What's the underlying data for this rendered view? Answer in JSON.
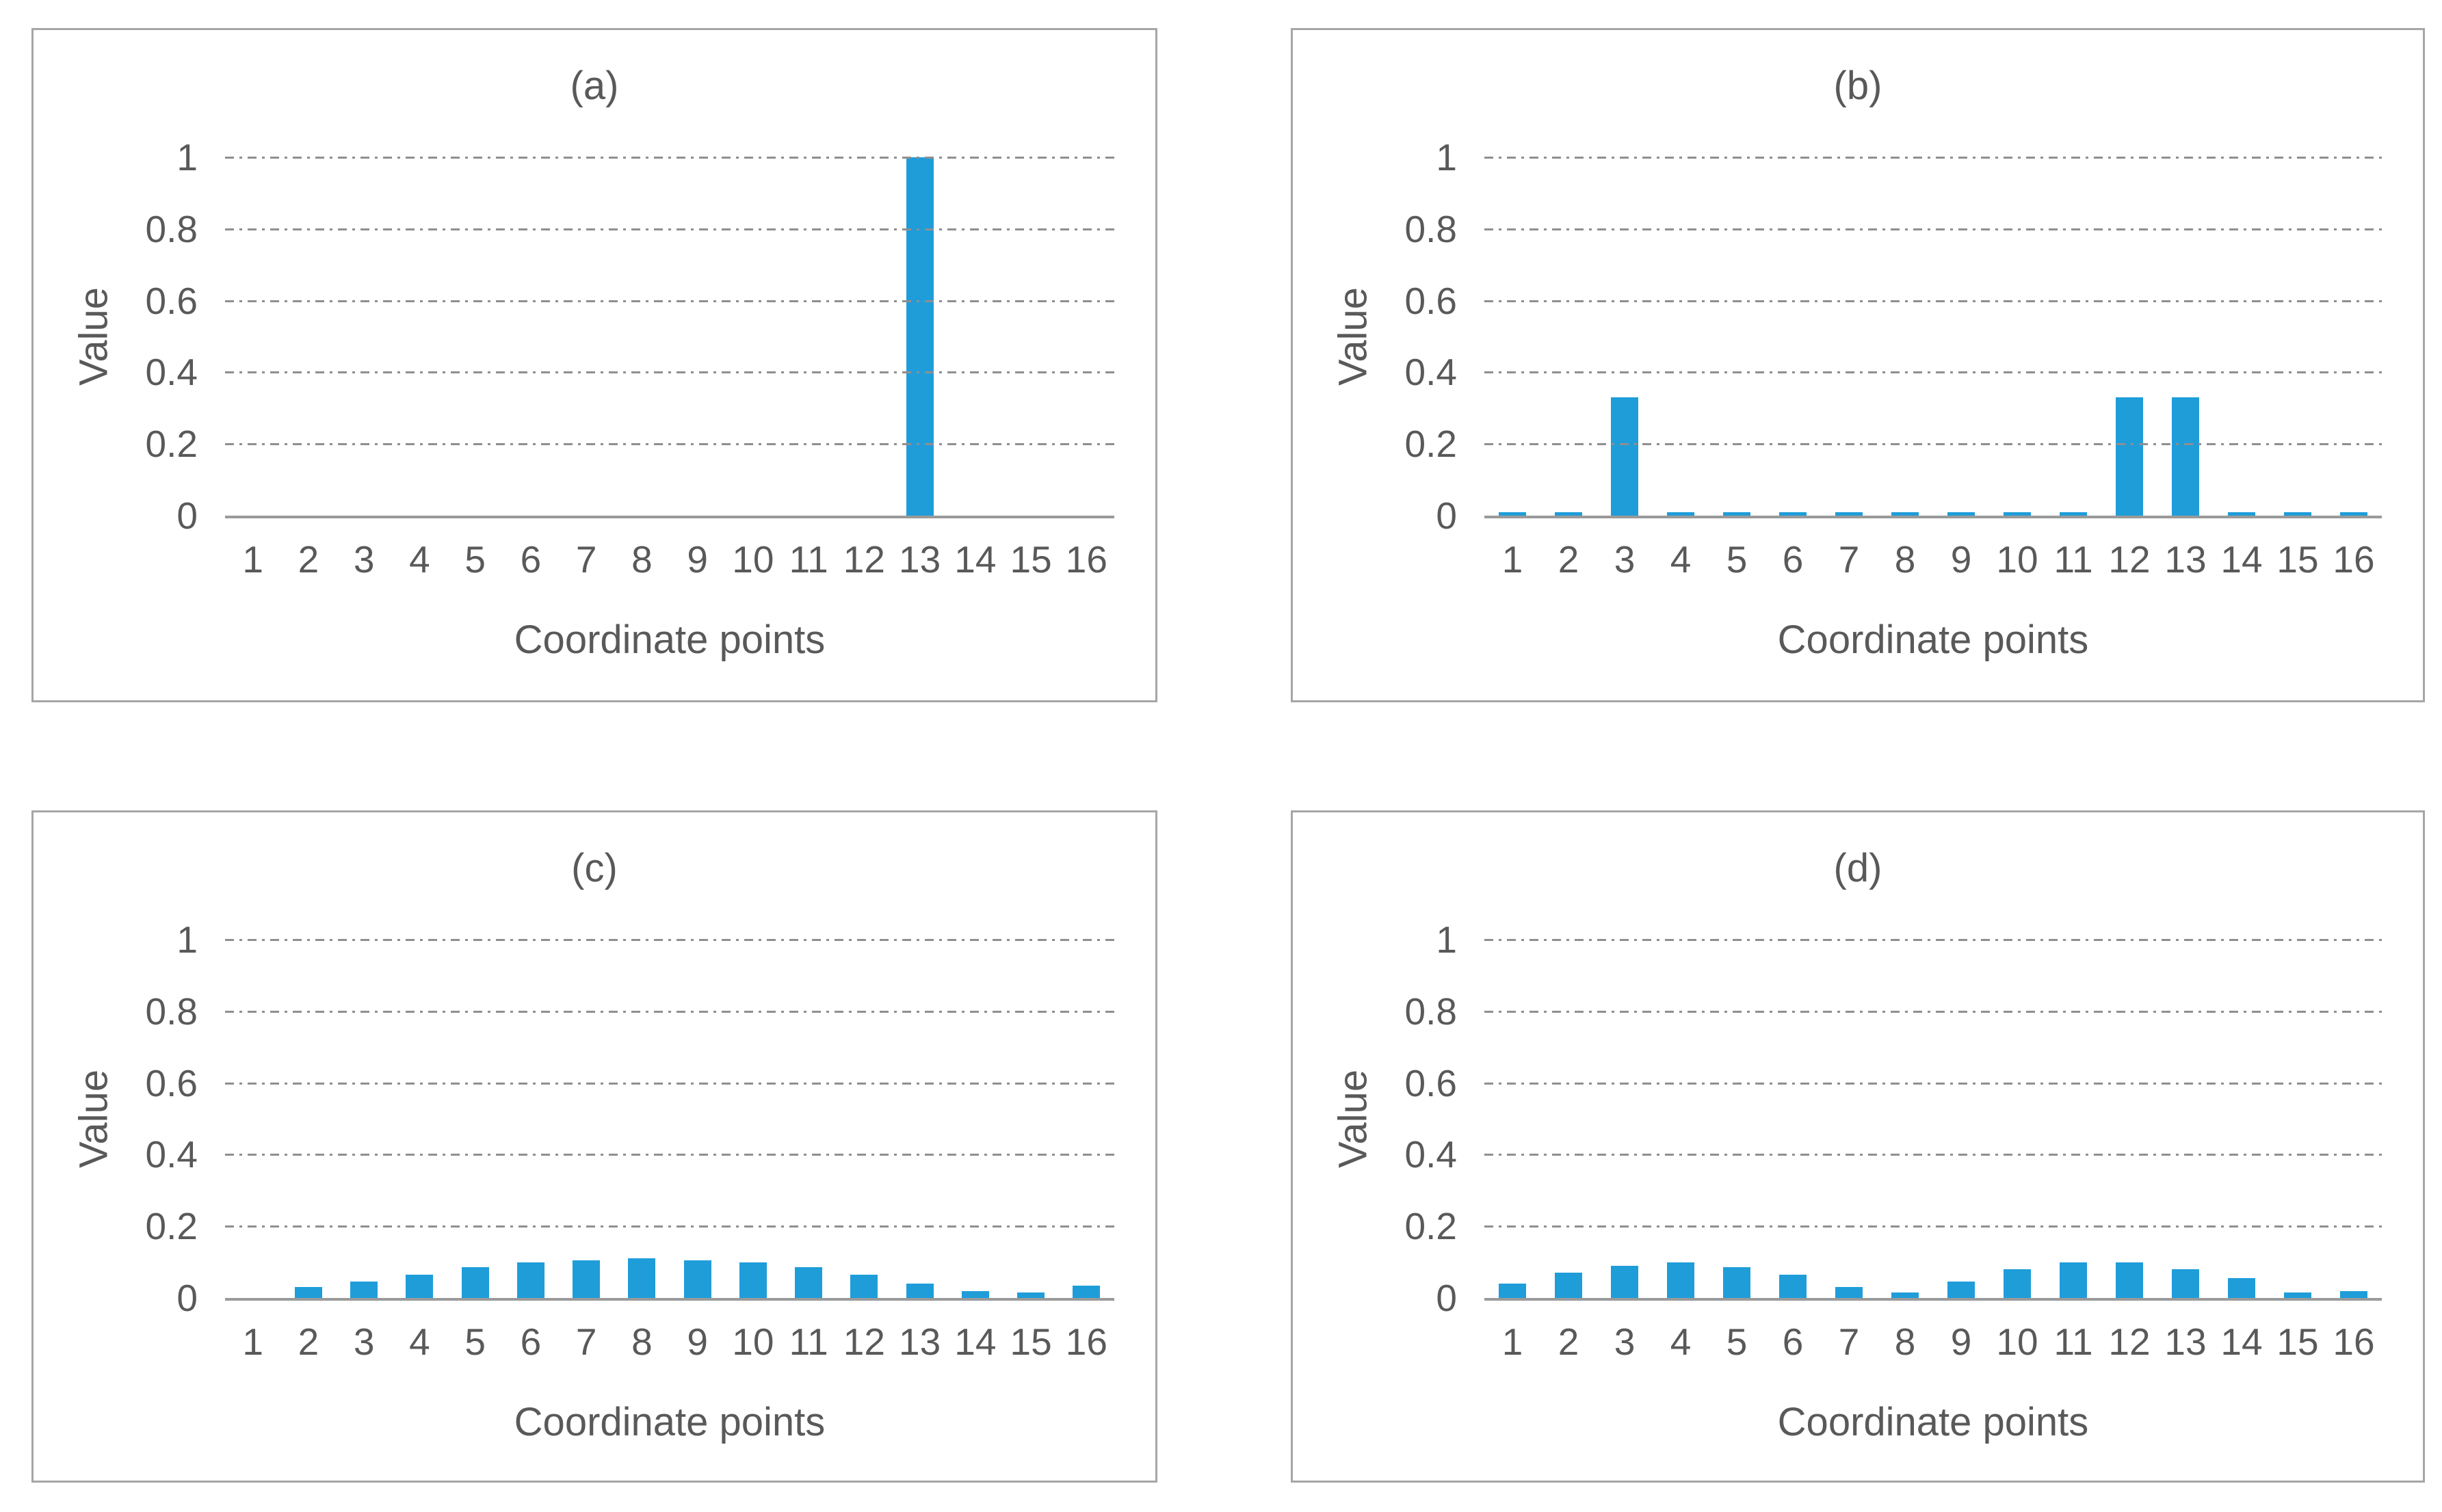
{
  "style": {
    "bar_color": "#1f9dd9",
    "text_color": "#595959",
    "grid_color": "#8f8f8f",
    "axis_color": "#9a9a9a",
    "panel_border_color": "#a6a6a6",
    "background": "#ffffff",
    "gridline_style": "dash-dot horizontal"
  },
  "chart_data": [
    {
      "id": "a",
      "type": "bar",
      "title": "(a)",
      "xlabel": "Coordinate points",
      "ylabel": "Value",
      "ylim": [
        0,
        1
      ],
      "ytick_labels": [
        "0",
        "0.2",
        "0.4",
        "0.6",
        "0.8",
        "1"
      ],
      "grid": "horizontal dash-dot at 0.2 steps",
      "legend": "none",
      "categories": [
        "1",
        "2",
        "3",
        "4",
        "5",
        "6",
        "7",
        "8",
        "9",
        "10",
        "11",
        "12",
        "13",
        "14",
        "15",
        "16"
      ],
      "values": [
        0,
        0,
        0,
        0,
        0,
        0,
        0,
        0,
        0,
        0,
        0,
        0,
        1.0,
        0,
        0,
        0
      ]
    },
    {
      "id": "b",
      "type": "bar",
      "title": "(b)",
      "xlabel": "Coordinate points",
      "ylabel": "Value",
      "ylim": [
        0,
        1
      ],
      "ytick_labels": [
        "0",
        "0.2",
        "0.4",
        "0.6",
        "0.8",
        "1"
      ],
      "grid": "horizontal dash-dot at 0.2 steps",
      "legend": "none",
      "categories": [
        "1",
        "2",
        "3",
        "4",
        "5",
        "6",
        "7",
        "8",
        "9",
        "10",
        "11",
        "12",
        "13",
        "14",
        "15",
        "16"
      ],
      "values": [
        0.01,
        0.01,
        0.33,
        0.01,
        0.01,
        0.01,
        0.01,
        0.01,
        0.01,
        0.01,
        0.01,
        0.33,
        0.33,
        0.01,
        0.01,
        0.01
      ]
    },
    {
      "id": "c",
      "type": "bar",
      "title": "(c)",
      "xlabel": "Coordinate points",
      "ylabel": "Value",
      "ylim": [
        0,
        1
      ],
      "ytick_labels": [
        "0",
        "0.2",
        "0.4",
        "0.6",
        "0.8",
        "1"
      ],
      "grid": "horizontal dash-dot at 0.2 steps",
      "legend": "none",
      "categories": [
        "1",
        "2",
        "3",
        "4",
        "5",
        "6",
        "7",
        "8",
        "9",
        "10",
        "11",
        "12",
        "13",
        "14",
        "15",
        "16"
      ],
      "values": [
        0,
        0.03,
        0.045,
        0.065,
        0.085,
        0.1,
        0.105,
        0.11,
        0.105,
        0.1,
        0.085,
        0.065,
        0.04,
        0.02,
        0.015,
        0.035
      ]
    },
    {
      "id": "d",
      "type": "bar",
      "title": "(d)",
      "xlabel": "Coordinate points",
      "ylabel": "Value",
      "ylim": [
        0,
        1
      ],
      "ytick_labels": [
        "0",
        "0.2",
        "0.4",
        "0.6",
        "0.8",
        "1"
      ],
      "grid": "horizontal dash-dot at 0.2 steps",
      "legend": "none",
      "categories": [
        "1",
        "2",
        "3",
        "4",
        "5",
        "6",
        "7",
        "8",
        "9",
        "10",
        "11",
        "12",
        "13",
        "14",
        "15",
        "16"
      ],
      "values": [
        0.04,
        0.07,
        0.09,
        0.1,
        0.085,
        0.065,
        0.03,
        0.015,
        0.045,
        0.08,
        0.1,
        0.1,
        0.08,
        0.055,
        0.015,
        0.02
      ]
    }
  ]
}
